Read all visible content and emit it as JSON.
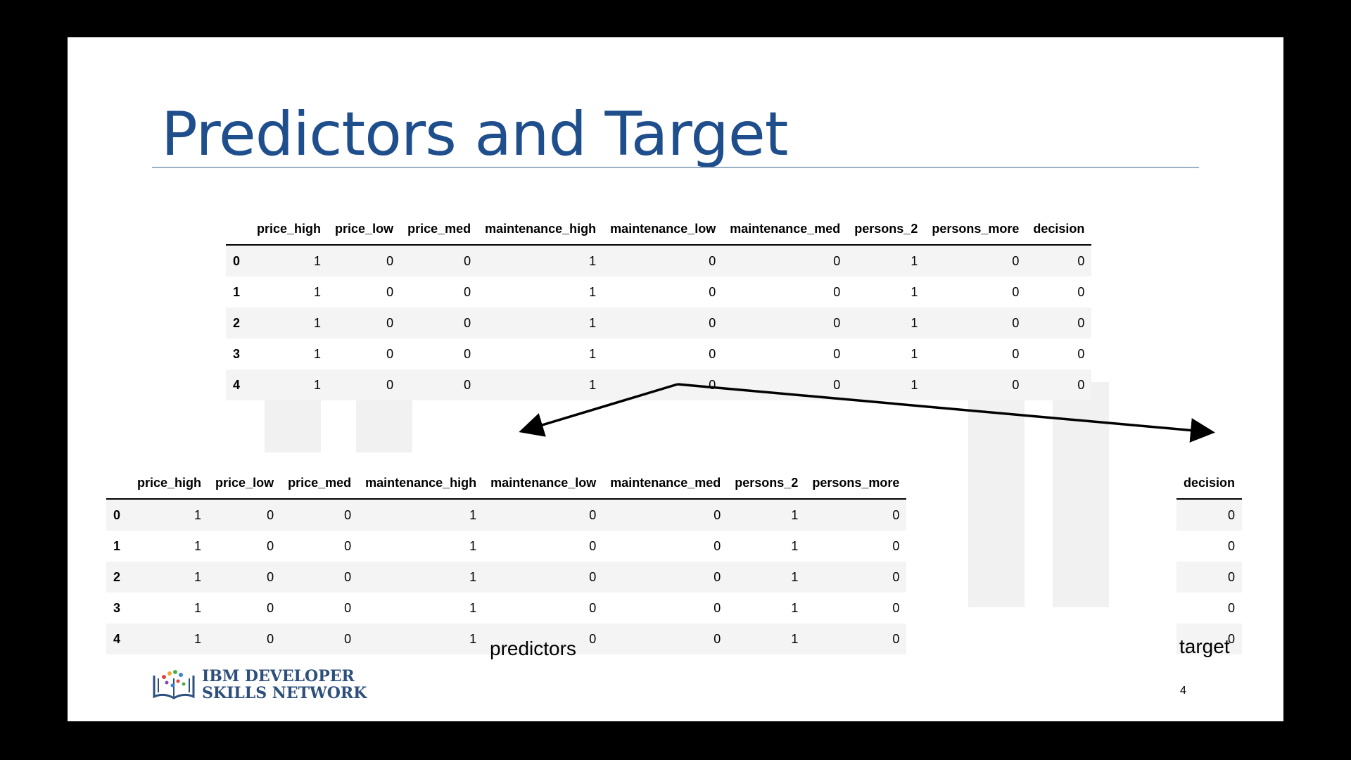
{
  "slide": {
    "title": "Predictors and Target",
    "page_number": "4",
    "caption_predictors": "predictors",
    "caption_target": "target",
    "logo": {
      "line1": "IBM DEVELOPER",
      "line2": "SKILLS NETWORK"
    },
    "colors": {
      "title": "#1f4e8c",
      "logo_text": "#2d4f7c",
      "row_stripe": "#f4f4f4"
    }
  },
  "full_df": {
    "columns": [
      "price_high",
      "price_low",
      "price_med",
      "maintenance_high",
      "maintenance_low",
      "maintenance_med",
      "persons_2",
      "persons_more",
      "decision"
    ],
    "rows": [
      [
        "0",
        "1",
        "0",
        "0",
        "1",
        "0",
        "0",
        "1",
        "0",
        "0"
      ],
      [
        "1",
        "1",
        "0",
        "0",
        "1",
        "0",
        "0",
        "1",
        "0",
        "0"
      ],
      [
        "2",
        "1",
        "0",
        "0",
        "1",
        "0",
        "0",
        "1",
        "0",
        "0"
      ],
      [
        "3",
        "1",
        "0",
        "0",
        "1",
        "0",
        "0",
        "1",
        "0",
        "0"
      ],
      [
        "4",
        "1",
        "0",
        "0",
        "1",
        "0",
        "0",
        "1",
        "0",
        "0"
      ]
    ]
  },
  "predictors_df": {
    "columns": [
      "price_high",
      "price_low",
      "price_med",
      "maintenance_high",
      "maintenance_low",
      "maintenance_med",
      "persons_2",
      "persons_more"
    ],
    "rows": [
      [
        "0",
        "1",
        "0",
        "0",
        "1",
        "0",
        "0",
        "1",
        "0"
      ],
      [
        "1",
        "1",
        "0",
        "0",
        "1",
        "0",
        "0",
        "1",
        "0"
      ],
      [
        "2",
        "1",
        "0",
        "0",
        "1",
        "0",
        "0",
        "1",
        "0"
      ],
      [
        "3",
        "1",
        "0",
        "0",
        "1",
        "0",
        "0",
        "1",
        "0"
      ],
      [
        "4",
        "1",
        "0",
        "0",
        "1",
        "0",
        "0",
        "1",
        "0"
      ]
    ]
  },
  "target_df": {
    "columns": [
      "decision"
    ],
    "rows": [
      [
        "0"
      ],
      [
        "0"
      ],
      [
        "0"
      ],
      [
        "0"
      ],
      [
        "0"
      ]
    ]
  }
}
